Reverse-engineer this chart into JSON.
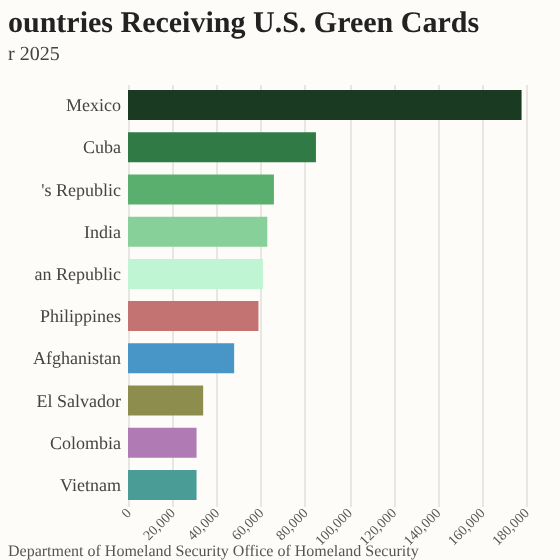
{
  "chart_data": {
    "type": "bar",
    "orientation": "horizontal",
    "title": "ountries Receiving U.S. Green Cards",
    "subtitle": "r 2025",
    "categories": [
      "Mexico",
      "Cuba",
      "'s Republic",
      "India",
      "an Republic",
      "Philippines",
      "Afghanistan",
      "El Salvador",
      "Colombia",
      "Vietnam"
    ],
    "values": [
      178000,
      85000,
      66000,
      63000,
      61000,
      59000,
      48000,
      34000,
      31000,
      31000
    ],
    "colors": [
      "#1a3a22",
      "#2f7a45",
      "#5aaf6e",
      "#88d09a",
      "#bff5d3",
      "#c47373",
      "#4896c8",
      "#8d8d4e",
      "#b07ab4",
      "#4a9c96"
    ],
    "xlim": [
      0,
      180000
    ],
    "xticks": [
      0,
      {
        "value": 20000,
        "label": "20,000"
      },
      {
        "value": 40000,
        "label": "40,000"
      },
      {
        "value": 60000,
        "label": "60,000"
      },
      {
        "value": 80000,
        "label": "80,000"
      },
      {
        "value": 100000,
        "label": "100,000"
      },
      {
        "value": 120000,
        "label": "120,000"
      },
      {
        "value": 140000,
        "label": "140,000"
      },
      {
        "value": 160000,
        "label": "160,000"
      },
      {
        "value": 180000,
        "label": "180,000"
      }
    ],
    "grid": "x",
    "annotations": [
      "Department of Homeland Security Office of Homeland Security"
    ]
  }
}
